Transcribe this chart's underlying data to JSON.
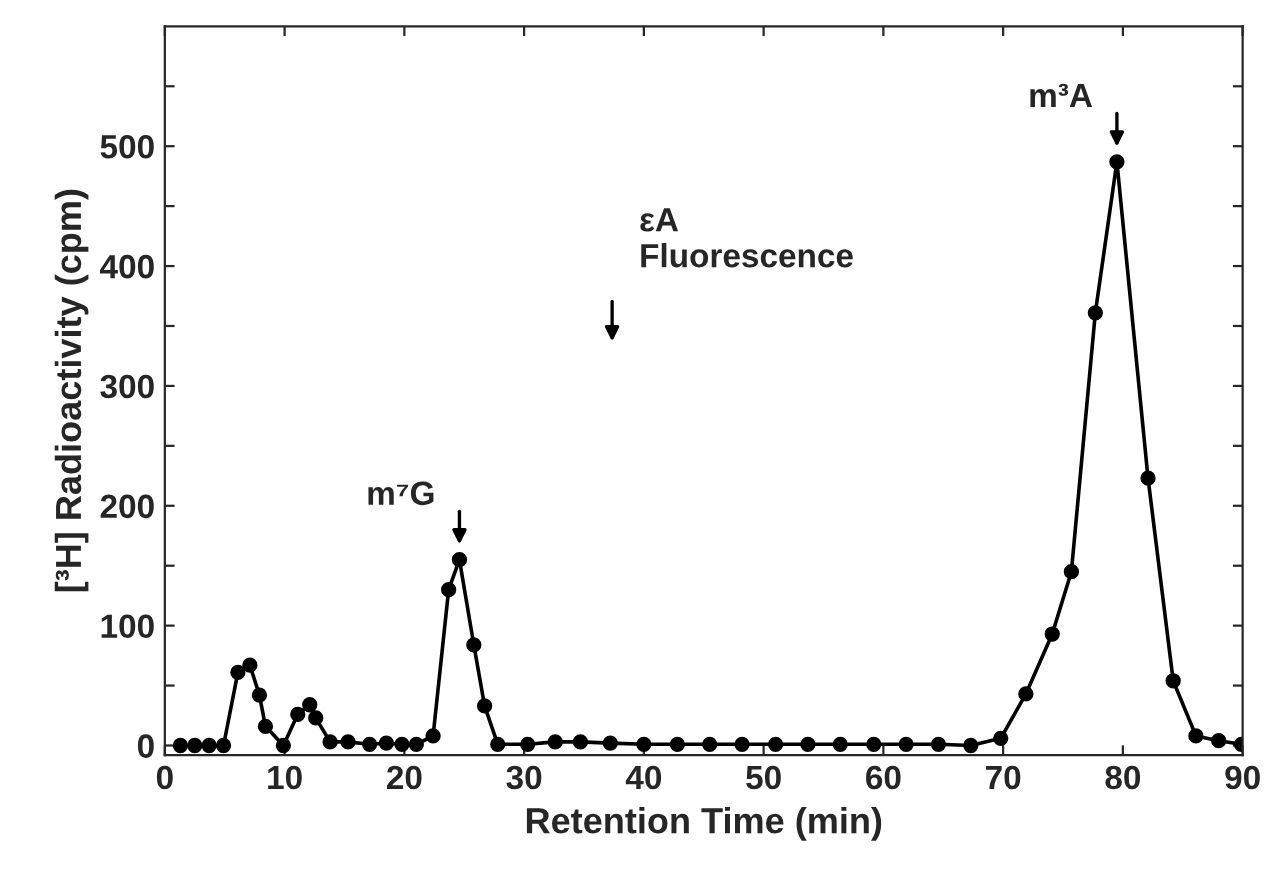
{
  "chart_data": {
    "type": "line",
    "xlabel": "Retention Time (min)",
    "ylabel": "[³H] Radioactivity (cpm)",
    "xlim": [
      0,
      90
    ],
    "xticks": [
      0,
      10,
      20,
      30,
      40,
      50,
      60,
      70,
      80,
      90
    ],
    "ylim": [
      -8,
      600
    ],
    "yticks": [
      0,
      {
        "value": 50,
        "label": null
      },
      100,
      {
        "value": 150,
        "label": null
      },
      200,
      {
        "value": 250,
        "label": null
      },
      300,
      {
        "value": 350,
        "label": null
      },
      400,
      {
        "value": 450,
        "label": null
      },
      500,
      {
        "value": 550,
        "label": null
      }
    ],
    "marker": "circle",
    "line_style": "solid",
    "grid": false,
    "legend": false,
    "series": [
      {
        "color": "#000000",
        "x": [
          1.3,
          2.5,
          3.7,
          4.9,
          6.1,
          7.1,
          7.9,
          8.4,
          9.9,
          11.1,
          12.1,
          12.6,
          13.8,
          15.3,
          17.1,
          18.5,
          19.8,
          21,
          22.4,
          23.7,
          24.6,
          25.8,
          26.7,
          27.8,
          30.3,
          32.6,
          34.7,
          37.2,
          40,
          42.8,
          45.5,
          48.2,
          51,
          53.7,
          56.4,
          59.2,
          61.9,
          64.6,
          67.3,
          69.8,
          71.9,
          74.1,
          75.7,
          77.7,
          79.5,
          82.1,
          84.2,
          86.1,
          88,
          89.9
        ],
        "values": [
          0,
          0,
          0,
          0,
          61,
          67,
          42,
          16,
          0,
          26,
          34,
          23,
          3,
          3,
          1,
          2,
          1,
          1,
          8,
          130,
          155,
          84,
          33,
          1,
          1,
          3,
          3,
          2,
          1,
          1,
          1,
          1,
          1,
          1,
          1,
          1,
          1,
          1,
          0,
          6,
          43,
          93,
          145,
          361,
          487,
          223,
          54,
          8,
          4,
          1
        ]
      }
    ],
    "annotations": [
      {
        "text": "m⁷G",
        "x": 24.6,
        "y": 155
      },
      "εA\nFluorescence",
      {
        "text": "m³A",
        "x": 79.5,
        "y": 487
      }
    ]
  }
}
